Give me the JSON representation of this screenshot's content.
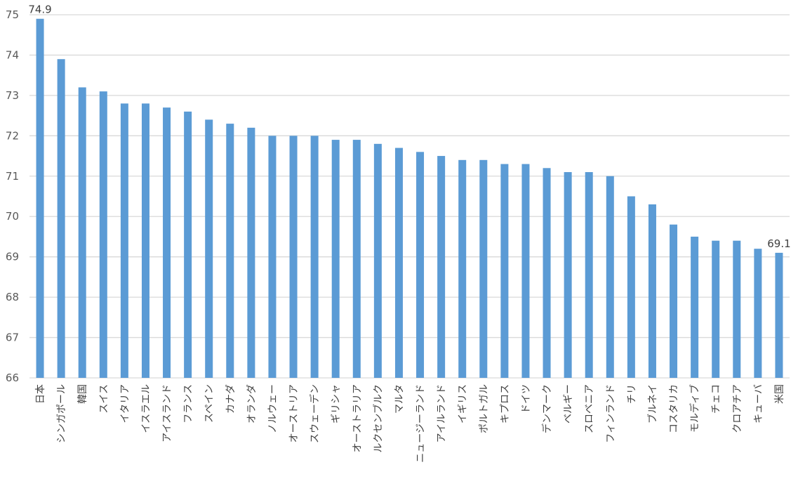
{
  "chart_data": {
    "type": "bar",
    "title": "",
    "xlabel": "",
    "ylabel": "",
    "ylim": [
      66,
      75
    ],
    "yticks": [
      66,
      67,
      68,
      69,
      70,
      71,
      72,
      73,
      74,
      75
    ],
    "grid": true,
    "legend": "none",
    "bar_color": "#5B9BD5",
    "gridline_color": "#D9D9D9",
    "categories": [
      "日本",
      "シンガポール",
      "韓国",
      "スイス",
      "イタリア",
      "イスラエル",
      "アイスランド",
      "フランス",
      "スペイン",
      "カナダ",
      "オランダ",
      "ノルウェー",
      "オーストリア",
      "スウェーデン",
      "ギリシャ",
      "オーストラリア",
      "ルクセンブルク",
      "マルタ",
      "ニュージーランド",
      "アイルランド",
      "イギリス",
      "ポルトガル",
      "キプロス",
      "ドイツ",
      "デンマーク",
      "ベルギー",
      "スロベニア",
      "フィンランド",
      "チリ",
      "ブルネイ",
      "コスタリカ",
      "モルディブ",
      "チェコ",
      "クロアチア",
      "キューバ",
      "米国"
    ],
    "values": [
      74.9,
      73.9,
      73.2,
      73.1,
      72.8,
      72.8,
      72.7,
      72.6,
      72.4,
      72.3,
      72.2,
      72.0,
      72.0,
      72.0,
      71.9,
      71.9,
      71.8,
      71.7,
      71.6,
      71.5,
      71.4,
      71.4,
      71.3,
      71.3,
      71.2,
      71.1,
      71.1,
      71.0,
      70.5,
      70.3,
      69.8,
      69.5,
      69.4,
      69.4,
      69.2,
      69.1
    ],
    "data_labels": [
      {
        "index": 0,
        "text": "74.9"
      },
      {
        "index": 35,
        "text": "69.1"
      }
    ]
  }
}
